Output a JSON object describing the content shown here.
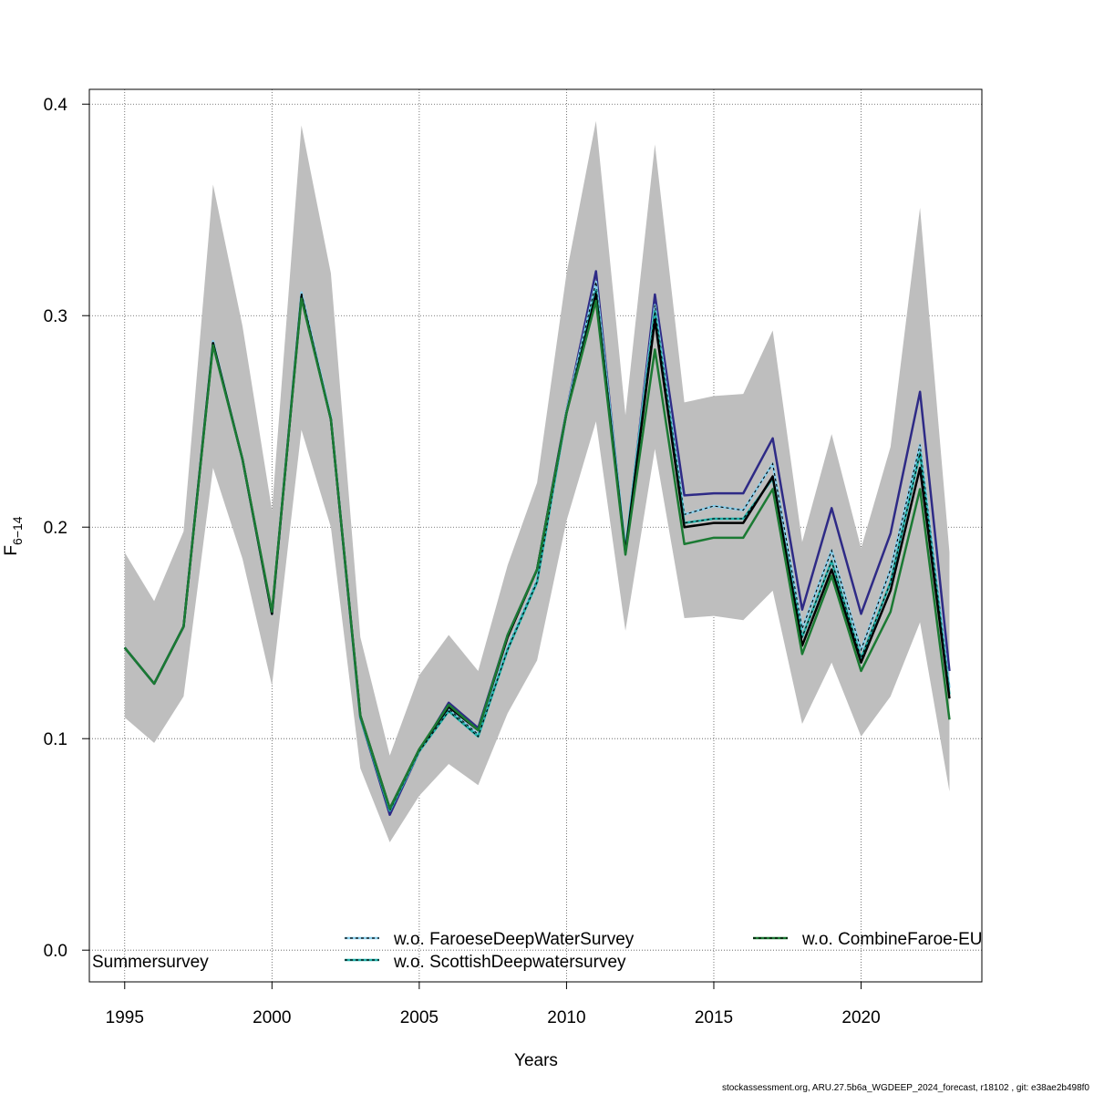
{
  "chart_data": {
    "type": "line",
    "xlabel": "Years",
    "ylabel_main": "F",
    "ylabel_sub": "6−14",
    "xlim": [
      1993.8,
      2024.1
    ],
    "ylim": [
      -0.015,
      0.407
    ],
    "xticks": [
      1995,
      2000,
      2005,
      2010,
      2015,
      2020
    ],
    "yticks": [
      0.0,
      0.1,
      0.2,
      0.3,
      0.4
    ],
    "ytick_labels": [
      "0.0",
      "0.1",
      "0.2",
      "0.3",
      "0.4"
    ],
    "grid": true,
    "x": [
      1995,
      1996,
      1997,
      1998,
      1999,
      2000,
      2001,
      2002,
      2003,
      2004,
      2005,
      2006,
      2007,
      2008,
      2009,
      2010,
      2011,
      2012,
      2013,
      2014,
      2015,
      2016,
      2017,
      2018,
      2019,
      2020,
      2021,
      2022,
      2023
    ],
    "band": {
      "lower": [
        0.11,
        0.098,
        0.12,
        0.228,
        0.185,
        0.125,
        0.246,
        0.2,
        0.086,
        0.051,
        0.073,
        0.088,
        0.078,
        0.112,
        0.137,
        0.203,
        0.25,
        0.151,
        0.237,
        0.157,
        0.158,
        0.156,
        0.17,
        0.107,
        0.136,
        0.101,
        0.12,
        0.155,
        0.075
      ],
      "upper": [
        0.188,
        0.165,
        0.198,
        0.362,
        0.295,
        0.208,
        0.39,
        0.32,
        0.148,
        0.092,
        0.13,
        0.149,
        0.132,
        0.182,
        0.221,
        0.32,
        0.392,
        0.253,
        0.381,
        0.259,
        0.262,
        0.263,
        0.293,
        0.193,
        0.244,
        0.19,
        0.238,
        0.351,
        0.188
      ]
    },
    "series": [
      {
        "color": "#2E2A86",
        "dash": false,
        "values": [
          0.143,
          0.126,
          0.153,
          0.287,
          0.232,
          0.159,
          0.31,
          0.251,
          0.11,
          0.064,
          0.094,
          0.117,
          0.105,
          0.149,
          0.18,
          0.255,
          0.321,
          0.188,
          0.31,
          0.215,
          0.216,
          0.216,
          0.242,
          0.161,
          0.209,
          0.159,
          0.197,
          0.264,
          0.132
        ]
      },
      {
        "name": "w.o. FaroeseDeepWaterSurvey",
        "color": "#87CEEB",
        "dash": true,
        "values": [
          0.143,
          0.126,
          0.153,
          0.288,
          0.232,
          0.159,
          0.311,
          0.252,
          0.111,
          0.066,
          0.094,
          0.114,
          0.102,
          0.143,
          0.175,
          0.255,
          0.316,
          0.19,
          0.305,
          0.206,
          0.21,
          0.208,
          0.23,
          0.152,
          0.189,
          0.142,
          0.18,
          0.239,
          0.124
        ]
      },
      {
        "name": "w.o. ScottishDeepwatersurvey",
        "color": "#20B2AA",
        "dash": true,
        "values": [
          0.143,
          0.126,
          0.153,
          0.287,
          0.232,
          0.159,
          0.309,
          0.251,
          0.11,
          0.066,
          0.094,
          0.113,
          0.101,
          0.142,
          0.174,
          0.254,
          0.312,
          0.189,
          0.302,
          0.202,
          0.204,
          0.204,
          0.223,
          0.148,
          0.184,
          0.138,
          0.174,
          0.235,
          0.121
        ]
      },
      {
        "name": "w.o. CombineFaroe-EU",
        "color": "#000000",
        "dash": true,
        "values": [
          0.143,
          0.126,
          0.153,
          0.287,
          0.232,
          0.159,
          0.309,
          0.251,
          0.111,
          0.067,
          0.095,
          0.115,
          0.104,
          0.148,
          0.18,
          0.254,
          0.31,
          0.188,
          0.298,
          0.2,
          0.202,
          0.202,
          0.224,
          0.144,
          0.18,
          0.136,
          0.17,
          0.228,
          0.119
        ]
      },
      {
        "name": "Summersurvey",
        "color": "#1B7A33",
        "dash": false,
        "values": [
          0.143,
          0.126,
          0.153,
          0.286,
          0.232,
          0.16,
          0.308,
          0.251,
          0.111,
          0.067,
          0.095,
          0.116,
          0.104,
          0.149,
          0.18,
          0.254,
          0.307,
          0.187,
          0.284,
          0.192,
          0.195,
          0.195,
          0.218,
          0.14,
          0.177,
          0.132,
          0.16,
          0.218,
          0.109
        ]
      }
    ],
    "legend": {
      "col1": [
        "w.o. FaroeseDeepWaterSurvey",
        "w.o. ScottishDeepwatersurvey"
      ],
      "col2": [
        "w.o. CombineFaroe-EU"
      ],
      "label": "Summersurvey"
    }
  },
  "footer": "stockassessment.org, ARU.27.5b6a_WGDEEP_2024_forecast, r18102 , git: e38ae2b498f0"
}
